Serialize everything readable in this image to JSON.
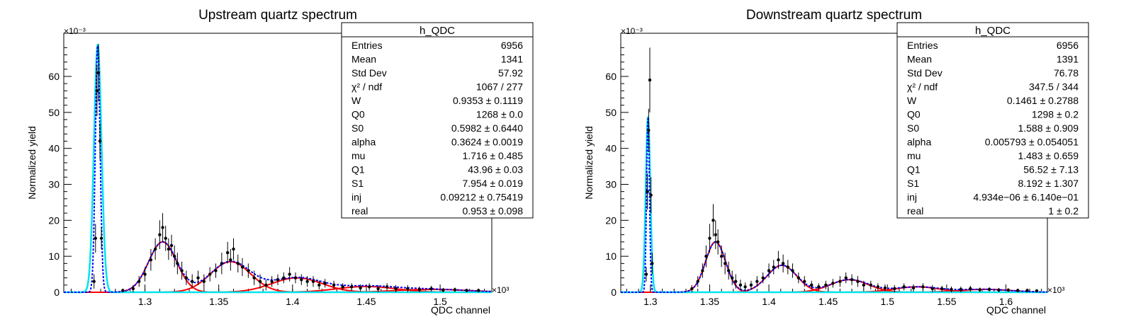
{
  "panels": [
    {
      "title": "Upstream quartz spectrum",
      "stats": {
        "name": "h_QDC",
        "rows": [
          {
            "key": "Entries",
            "value": "6956"
          },
          {
            "key": "Mean",
            "value": "1341"
          },
          {
            "key": "Std Dev",
            "value": "57.92"
          },
          {
            "key": "χ² / ndf",
            "value": "1067 / 277"
          },
          {
            "key": "W",
            "value": "0.9353 ± 0.1119"
          },
          {
            "key": "Q0",
            "value": "1268 ± 0.0"
          },
          {
            "key": "S0",
            "value": "0.5982 ± 0.6440"
          },
          {
            "key": "alpha",
            "value": "0.3624 ± 0.0019"
          },
          {
            "key": "mu",
            "value": "1.716 ± 0.485"
          },
          {
            "key": "Q1",
            "value": "43.96 ± 0.03"
          },
          {
            "key": "S1",
            "value": "7.954 ± 0.019"
          },
          {
            "key": "inj",
            "value": "0.09212 ± 0.75419"
          },
          {
            "key": "real",
            "value": "0.953 ± 0.098"
          }
        ]
      }
    },
    {
      "title": "Downstream quartz spectrum",
      "stats": {
        "name": "h_QDC",
        "rows": [
          {
            "key": "Entries",
            "value": "6956"
          },
          {
            "key": "Mean",
            "value": "1391"
          },
          {
            "key": "Std Dev",
            "value": "76.78"
          },
          {
            "key": "χ² / ndf",
            "value": "347.5 / 344"
          },
          {
            "key": "W",
            "value": "0.1461 ± 0.2788"
          },
          {
            "key": "Q0",
            "value": "1298 ± 0.2"
          },
          {
            "key": "S0",
            "value": "1.588 ± 0.909"
          },
          {
            "key": "alpha",
            "value": "0.005793 ± 0.054051"
          },
          {
            "key": "mu",
            "value": "1.483 ± 0.659"
          },
          {
            "key": "Q1",
            "value": "56.52 ± 7.13"
          },
          {
            "key": "S1",
            "value": "8.192 ± 1.307"
          },
          {
            "key": "inj",
            "value": "4.934e−06 ± 6.140e−01"
          },
          {
            "key": "real",
            "value": "1 ± 0.2"
          }
        ]
      }
    }
  ],
  "colors": {
    "frame": "#000000",
    "data": "#000000",
    "fit_total": "#0000ff",
    "fit_peaks": "#ff0000",
    "pedestal": "#00e5ee"
  },
  "chart_data": [
    {
      "type": "scatter",
      "title": "Upstream quartz spectrum",
      "xlabel": "QDC channel",
      "ylabel": "Normalized yield",
      "x_multiplier": "×10³",
      "y_multiplier": "×10⁻³",
      "xlim": [
        1.245,
        1.535
      ],
      "ylim": [
        0,
        72
      ],
      "xticks": [
        1.3,
        1.35,
        1.4,
        1.45,
        1.5
      ],
      "xtick_labels": [
        "1.3",
        "1.35",
        "1.4",
        "1.45",
        "1.5"
      ],
      "yticks": [
        0,
        10,
        20,
        30,
        40,
        50,
        60
      ],
      "ytick_labels": [
        "0",
        "10",
        "20",
        "30",
        "40",
        "50",
        "60"
      ],
      "pedestal": {
        "center": 1.268,
        "sigma": 0.0016,
        "amplitude": 69
      },
      "peaks": [
        {
          "center": 1.312,
          "sigma": 0.0095,
          "amplitude": 14
        },
        {
          "center": 1.358,
          "sigma": 0.0135,
          "amplitude": 8.5
        },
        {
          "center": 1.403,
          "sigma": 0.017,
          "amplitude": 4.0
        },
        {
          "center": 1.45,
          "sigma": 0.02,
          "amplitude": 1.6
        },
        {
          "center": 1.495,
          "sigma": 0.024,
          "amplitude": 0.8
        }
      ],
      "points": [
        [
          1.2655,
          3,
          2
        ],
        [
          1.2665,
          15,
          4
        ],
        [
          1.2675,
          56,
          7
        ],
        [
          1.2685,
          61,
          8
        ],
        [
          1.2695,
          42,
          5
        ],
        [
          1.2705,
          15,
          3
        ],
        [
          1.285,
          0.5,
          0.5
        ],
        [
          1.292,
          1,
          1
        ],
        [
          1.296,
          3,
          1.5
        ],
        [
          1.3,
          5,
          2
        ],
        [
          1.304,
          9,
          3
        ],
        [
          1.307,
          12,
          3
        ],
        [
          1.31,
          16,
          4
        ],
        [
          1.312,
          18,
          4
        ],
        [
          1.314,
          15,
          3.5
        ],
        [
          1.316,
          12,
          3
        ],
        [
          1.318,
          13,
          3
        ],
        [
          1.32,
          10,
          3
        ],
        [
          1.322,
          8,
          3
        ],
        [
          1.325,
          6,
          2.5
        ],
        [
          1.328,
          4,
          2
        ],
        [
          1.332,
          3,
          2
        ],
        [
          1.336,
          4,
          2
        ],
        [
          1.34,
          3,
          2
        ],
        [
          1.344,
          5,
          2
        ],
        [
          1.348,
          6,
          2
        ],
        [
          1.352,
          8,
          3
        ],
        [
          1.356,
          11,
          3
        ],
        [
          1.358,
          9,
          3
        ],
        [
          1.36,
          12,
          3
        ],
        [
          1.363,
          8,
          2.5
        ],
        [
          1.366,
          7,
          2.5
        ],
        [
          1.37,
          6,
          2
        ],
        [
          1.374,
          4,
          2
        ],
        [
          1.378,
          3,
          2
        ],
        [
          1.382,
          2,
          1.5
        ],
        [
          1.386,
          3,
          1.5
        ],
        [
          1.39,
          3.5,
          1.5
        ],
        [
          1.394,
          4,
          1.5
        ],
        [
          1.398,
          5,
          2
        ],
        [
          1.402,
          4,
          1.5
        ],
        [
          1.406,
          3.5,
          1.5
        ],
        [
          1.41,
          3,
          1.5
        ],
        [
          1.414,
          3,
          1.5
        ],
        [
          1.418,
          2,
          1.2
        ],
        [
          1.422,
          2.5,
          1.2
        ],
        [
          1.428,
          2,
          1.2
        ],
        [
          1.434,
          1.5,
          1
        ],
        [
          1.44,
          1.5,
          1
        ],
        [
          1.446,
          1.2,
          1
        ],
        [
          1.452,
          1.5,
          1
        ],
        [
          1.458,
          1,
          1
        ],
        [
          1.464,
          1.5,
          1
        ],
        [
          1.47,
          1,
          1
        ],
        [
          1.478,
          1,
          1
        ],
        [
          1.486,
          0.8,
          0.8
        ],
        [
          1.494,
          1,
          0.8
        ],
        [
          1.502,
          0.6,
          0.6
        ],
        [
          1.51,
          0.7,
          0.6
        ],
        [
          1.518,
          0.5,
          0.5
        ],
        [
          1.526,
          0.5,
          0.5
        ]
      ]
    },
    {
      "type": "scatter",
      "title": "Downstream quartz spectrum",
      "xlabel": "QDC channel",
      "ylabel": "Normalized yield",
      "x_multiplier": "×10³",
      "y_multiplier": "×10⁻³",
      "xlim": [
        1.275,
        1.635
      ],
      "ylim": [
        0,
        72
      ],
      "xticks": [
        1.3,
        1.35,
        1.4,
        1.45,
        1.5,
        1.55,
        1.6
      ],
      "xtick_labels": [
        "1.3",
        "1.35",
        "1.4",
        "1.45",
        "1.5",
        "1.55",
        "1.6"
      ],
      "yticks": [
        0,
        10,
        20,
        30,
        40,
        50,
        60
      ],
      "ytick_labels": [
        "0",
        "10",
        "20",
        "30",
        "40",
        "50",
        "60"
      ],
      "pedestal": {
        "center": 1.298,
        "sigma": 0.0012,
        "amplitude": 49
      },
      "peaks": [
        {
          "center": 1.355,
          "sigma": 0.0085,
          "amplitude": 14
        },
        {
          "center": 1.411,
          "sigma": 0.0125,
          "amplitude": 7.5
        },
        {
          "center": 1.468,
          "sigma": 0.016,
          "amplitude": 3.5
        },
        {
          "center": 1.525,
          "sigma": 0.019,
          "amplitude": 1.5
        },
        {
          "center": 1.582,
          "sigma": 0.022,
          "amplitude": 0.8
        }
      ],
      "points": [
        [
          1.2965,
          5,
          2
        ],
        [
          1.2975,
          28,
          5
        ],
        [
          1.2985,
          45,
          6
        ],
        [
          1.2995,
          59,
          9
        ],
        [
          1.3005,
          27,
          5
        ],
        [
          1.3015,
          8,
          3
        ],
        [
          1.335,
          1,
          1
        ],
        [
          1.34,
          3,
          1.5
        ],
        [
          1.344,
          6,
          2
        ],
        [
          1.347,
          10,
          3
        ],
        [
          1.35,
          15,
          4
        ],
        [
          1.353,
          20,
          4.5
        ],
        [
          1.355,
          16,
          4
        ],
        [
          1.357,
          14,
          3.5
        ],
        [
          1.36,
          10,
          3
        ],
        [
          1.363,
          8,
          3
        ],
        [
          1.366,
          6,
          2.5
        ],
        [
          1.369,
          4,
          2
        ],
        [
          1.372,
          3,
          2
        ],
        [
          1.376,
          2,
          1.5
        ],
        [
          1.38,
          1.5,
          1.2
        ],
        [
          1.385,
          2,
          1.2
        ],
        [
          1.39,
          3,
          1.5
        ],
        [
          1.395,
          4,
          1.5
        ],
        [
          1.4,
          6,
          2
        ],
        [
          1.404,
          7,
          2
        ],
        [
          1.408,
          9,
          2.5
        ],
        [
          1.412,
          8,
          2.5
        ],
        [
          1.416,
          7,
          2
        ],
        [
          1.42,
          6,
          2
        ],
        [
          1.425,
          4,
          1.5
        ],
        [
          1.43,
          3,
          1.5
        ],
        [
          1.436,
          2,
          1.2
        ],
        [
          1.442,
          1.5,
          1
        ],
        [
          1.448,
          2,
          1.2
        ],
        [
          1.454,
          2.5,
          1.2
        ],
        [
          1.46,
          3,
          1.5
        ],
        [
          1.465,
          4,
          1.5
        ],
        [
          1.47,
          3.5,
          1.5
        ],
        [
          1.475,
          3,
          1.5
        ],
        [
          1.48,
          2,
          1.2
        ],
        [
          1.486,
          2,
          1.2
        ],
        [
          1.492,
          1.5,
          1
        ],
        [
          1.498,
          1.2,
          1
        ],
        [
          1.506,
          1,
          1
        ],
        [
          1.514,
          1.5,
          1
        ],
        [
          1.522,
          1.2,
          1
        ],
        [
          1.53,
          1.5,
          1
        ],
        [
          1.538,
          1,
          1
        ],
        [
          1.546,
          1,
          0.8
        ],
        [
          1.554,
          0.8,
          0.8
        ],
        [
          1.562,
          0.8,
          0.8
        ],
        [
          1.57,
          1,
          0.8
        ],
        [
          1.578,
          0.7,
          0.6
        ],
        [
          1.586,
          0.8,
          0.6
        ],
        [
          1.594,
          0.6,
          0.6
        ],
        [
          1.602,
          0.6,
          0.5
        ],
        [
          1.61,
          0.5,
          0.5
        ],
        [
          1.618,
          0.5,
          0.5
        ],
        [
          1.626,
          0.4,
          0.4
        ]
      ]
    }
  ]
}
